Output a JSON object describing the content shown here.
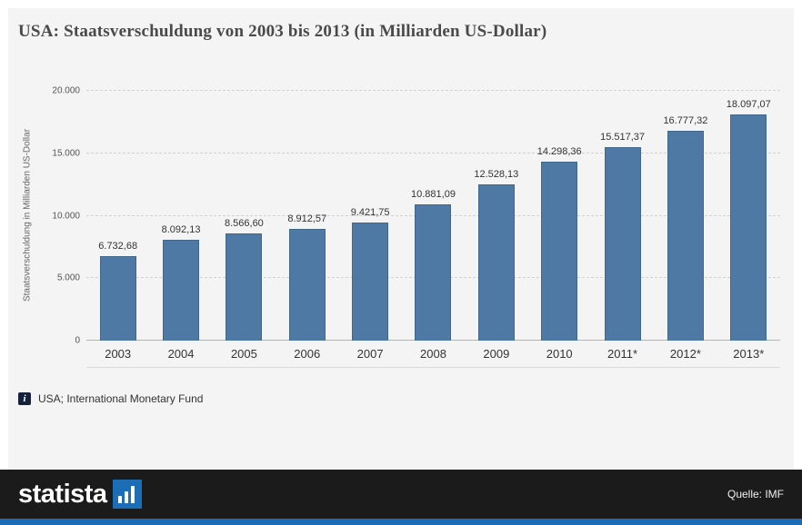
{
  "title": "USA: Staatsverschuldung von 2003 bis 2013 (in Milliarden US-Dollar)",
  "source": {
    "icon_glyph": "i",
    "text": "USA; International Monetary Fund"
  },
  "footer": {
    "brand": "statista",
    "source_label": "Quelle: IMF"
  },
  "colors": {
    "bar_fill": "#4d79a4",
    "bar_border": "#41678d",
    "accent_blue": "#1b6db5",
    "footer_bg": "#1b1b1b",
    "panel_bg": "#f4f4f4"
  },
  "chart_data": {
    "type": "bar",
    "title": "USA: Staatsverschuldung von 2003 bis 2013 (in Milliarden US-Dollar)",
    "xlabel": "",
    "ylabel": "Staatsverschuldung in Milliarden US-Dollar",
    "categories": [
      "2003",
      "2004",
      "2005",
      "2006",
      "2007",
      "2008",
      "2009",
      "2010",
      "2011*",
      "2012*",
      "2013*"
    ],
    "values": [
      6732.68,
      8092.13,
      8566.6,
      8912.57,
      9421.75,
      10881.09,
      12528.13,
      14298.36,
      15517.37,
      16777.32,
      18097.07
    ],
    "value_labels": [
      "6.732,68",
      "8.092,13",
      "8.566,60",
      "8.912,57",
      "9.421,75",
      "10.881,09",
      "12.528,13",
      "14.298,36",
      "15.517,37",
      "16.777,32",
      "18.097,07"
    ],
    "ylim": [
      0,
      20000
    ],
    "yticks": [
      0,
      5000,
      10000,
      15000,
      20000
    ],
    "ytick_labels": [
      "0",
      "5.000",
      "10.000",
      "15.000",
      "20.000"
    ],
    "grid": true,
    "grid_style": "dashed-horizontal",
    "legend": false,
    "unit": "Milliarden US-Dollar"
  }
}
